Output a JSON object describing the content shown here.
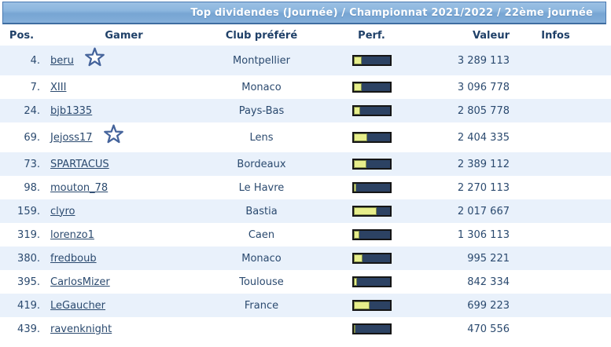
{
  "title": "Top dividendes (Journée) / Championnat 2021/2022 / 22ème journée",
  "columns": {
    "pos": "Pos.",
    "gamer": "Gamer",
    "club": "Club préféré",
    "perf": "Perf.",
    "valeur": "Valeur",
    "infos": "Infos"
  },
  "colors": {
    "title_bar_top": "#9cc1e4",
    "title_bar_bottom": "#7fabd7",
    "title_bar_border": "#4a7ab1",
    "title_text": "#ffffff",
    "text_navy": "#2b4a6f",
    "row_alt_bg": "#e9f1fb",
    "perf_bar_bg": "#2c4263",
    "perf_bar_fill": "#e7ee8b",
    "perf_bar_border": "#151515",
    "star_outline": "#44639b"
  },
  "rows": [
    {
      "pos": "4.",
      "gamer": "beru",
      "starred": true,
      "club": "Montpellier",
      "perf_pct": 22,
      "valeur": "3 289 113",
      "infos": ""
    },
    {
      "pos": "7.",
      "gamer": "XIII",
      "starred": false,
      "club": "Monaco",
      "perf_pct": 22,
      "valeur": "3 096 778",
      "infos": ""
    },
    {
      "pos": "24.",
      "gamer": "bjb1335",
      "starred": false,
      "club": "Pays-Bas",
      "perf_pct": 19,
      "valeur": "2 805 778",
      "infos": ""
    },
    {
      "pos": "69.",
      "gamer": "Jejoss17",
      "starred": true,
      "club": "Lens",
      "perf_pct": 38,
      "valeur": "2 404 335",
      "infos": ""
    },
    {
      "pos": "73.",
      "gamer": "SPARTACUS",
      "starred": false,
      "club": "Bordeaux",
      "perf_pct": 36,
      "valeur": "2 389 112",
      "infos": ""
    },
    {
      "pos": "98.",
      "gamer": "mouton_78",
      "starred": false,
      "club": "Le Havre",
      "perf_pct": 8,
      "valeur": "2 270 113",
      "infos": ""
    },
    {
      "pos": "159.",
      "gamer": "clyro",
      "starred": false,
      "club": "Bastia",
      "perf_pct": 65,
      "valeur": "2 017 667",
      "infos": ""
    },
    {
      "pos": "319.",
      "gamer": "lorenzo1",
      "starred": false,
      "club": "Caen",
      "perf_pct": 16,
      "valeur": "1 306 113",
      "infos": ""
    },
    {
      "pos": "380.",
      "gamer": "fredboub",
      "starred": false,
      "club": "Monaco",
      "perf_pct": 26,
      "valeur": "995 221",
      "infos": ""
    },
    {
      "pos": "395.",
      "gamer": "CarlosMizer",
      "starred": false,
      "club": "Toulouse",
      "perf_pct": 10,
      "valeur": "842 334",
      "infos": ""
    },
    {
      "pos": "419.",
      "gamer": "LeGaucher",
      "starred": false,
      "club": "France",
      "perf_pct": 44,
      "valeur": "699 223",
      "infos": ""
    },
    {
      "pos": "439.",
      "gamer": "ravenknight",
      "starred": false,
      "club": "",
      "perf_pct": 6,
      "valeur": "470 556",
      "infos": ""
    }
  ]
}
